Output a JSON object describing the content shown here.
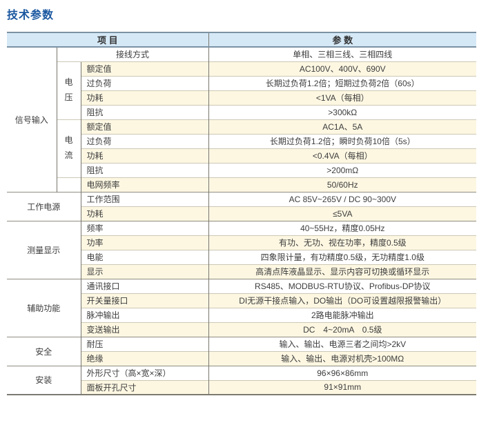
{
  "title": "技术参数",
  "colors": {
    "title_blue": "#1a57a0",
    "header_bg": "#d5e8f6",
    "header_border": "#7a92a3",
    "stripe_cream": "#fdf7e2",
    "thin_line": "#ccc8b6",
    "dark_line": "#77756d"
  },
  "table": {
    "headers": {
      "item": "项 目",
      "param": "参 数"
    },
    "categories": {
      "signal": "信号输入",
      "voltage": "电压",
      "current": "电流",
      "power": "工作电源",
      "measure": "测量显示",
      "aux": "辅助功能",
      "safety": "安全",
      "install": "安装"
    },
    "rows": [
      {
        "item": "接线方式",
        "value": "单相、三相三线、三相四线"
      },
      {
        "item": "额定值",
        "value": "AC100V、400V、690V"
      },
      {
        "item": "过负荷",
        "value": "长期过负荷1.2倍；短期过负荷2倍（60s）"
      },
      {
        "item": "功耗",
        "value": "<1VA（每相）"
      },
      {
        "item": "阻抗",
        "value": ">300kΩ"
      },
      {
        "item": "额定值",
        "value": "AC1A、5A"
      },
      {
        "item": "过负荷",
        "value": "长期过负荷1.2倍；瞬时负荷10倍（5s）"
      },
      {
        "item": "功耗",
        "value": "<0.4VA（每相）"
      },
      {
        "item": "阻抗",
        "value": ">200mΩ"
      },
      {
        "item": "电网频率",
        "value": "50/60Hz"
      },
      {
        "item": "工作范围",
        "value": "AC 85V~265V / DC 90~300V"
      },
      {
        "item": "功耗",
        "value": "≤5VA"
      },
      {
        "item": "频率",
        "value": "40~55Hz，精度0.05Hz"
      },
      {
        "item": "功率",
        "value": "有功、无功、视在功率，精度0.5级"
      },
      {
        "item": "电能",
        "value": "四象限计量，有功精度0.5级，无功精度1.0级"
      },
      {
        "item": "显示",
        "value": "高清点阵液晶显示、显示内容可切换或循环显示"
      },
      {
        "item": "通讯接口",
        "value": "RS485、MODBUS-RTU协议、Profibus-DP协议"
      },
      {
        "item": "开关量接口",
        "value": "DI无源干接点输入，DO输出（DO可设置越限报警输出）"
      },
      {
        "item": "脉冲输出",
        "value": "2路电能脉冲输出"
      },
      {
        "item": "变送输出",
        "value": "DC　4~20mA　0.5级"
      },
      {
        "item": "耐压",
        "value": "输入、输出、电源三者之间均>2kV"
      },
      {
        "item": "绝缘",
        "value": "输入、输出、电源对机壳>100MΩ"
      },
      {
        "item": "外形尺寸（高×宽×深）",
        "value": "96×96×86mm"
      },
      {
        "item": "面板开孔尺寸",
        "value": "91×91mm"
      }
    ]
  }
}
